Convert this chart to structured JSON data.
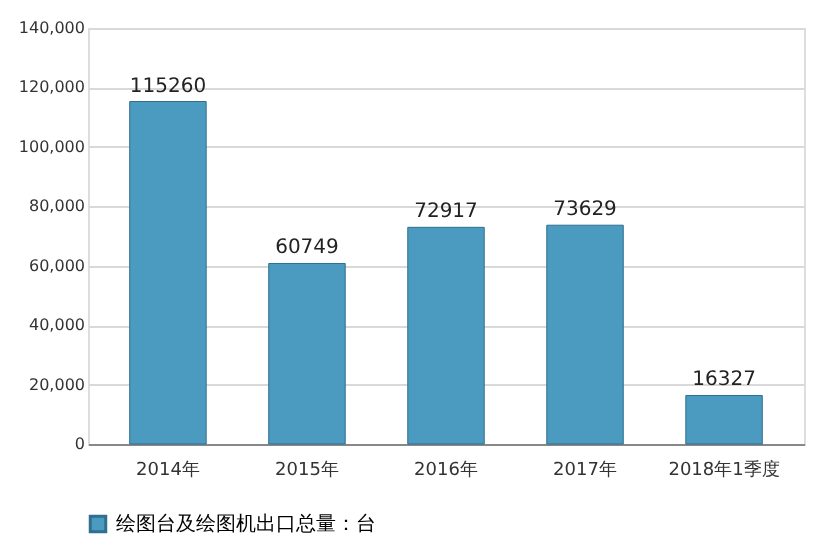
{
  "chart_data": {
    "type": "bar",
    "categories": [
      "2014年",
      "2015年",
      "2016年",
      "2017年",
      "2018年1季度"
    ],
    "series": [
      {
        "name": "绘图台及绘图机出口总量：台",
        "color": "#4a9bbf",
        "values": [
          115260,
          60749,
          72917,
          73629,
          16327
        ]
      }
    ],
    "ylim": [
      0,
      140000
    ],
    "yticks": [
      0,
      {
        "value": 20000,
        "label": "20,000"
      },
      {
        "value": 40000,
        "label": "40,000"
      },
      {
        "value": 60000,
        "label": "60,000"
      },
      {
        "value": 80000,
        "label": "80,000"
      },
      {
        "value": 100000,
        "label": "100,000"
      },
      {
        "value": 120000,
        "label": "120,000"
      },
      {
        "value": 140000,
        "label": "140,000"
      }
    ],
    "grid": "y",
    "legend": "bottom",
    "data_labels": true
  }
}
